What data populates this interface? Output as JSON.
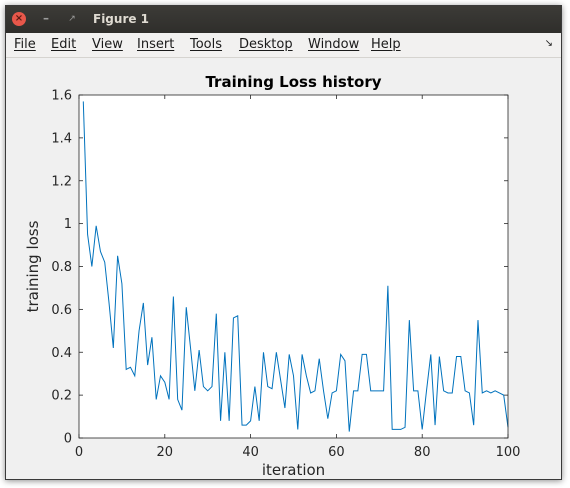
{
  "window": {
    "title": "Figure 1",
    "close_glyph": "×",
    "minimize_glyph": "–",
    "maximize_glyph": "↗"
  },
  "menu": {
    "items": [
      "File",
      "Edit",
      "View",
      "Insert",
      "Tools",
      "Desktop",
      "Window",
      "Help"
    ],
    "dock_glyph": "↘"
  },
  "colors": {
    "line": "#0072bd",
    "axes_bg": "#ffffff",
    "figure_bg": "#f0f0f0",
    "axis": "#262626"
  },
  "chart_data": {
    "type": "line",
    "title": "Training Loss history",
    "xlabel": "iteration",
    "ylabel": "training loss",
    "xlim": [
      0,
      100
    ],
    "ylim": [
      0,
      1.6
    ],
    "xticks": [
      0,
      20,
      40,
      60,
      80,
      100
    ],
    "yticks": [
      0,
      0.2,
      0.4,
      0.6,
      0.8,
      1,
      1.2,
      1.4,
      1.6
    ],
    "grid": false,
    "series": [
      {
        "x": [
          1,
          2,
          3,
          4,
          5,
          6,
          7,
          8,
          9,
          10,
          11,
          12,
          13,
          14,
          15,
          16,
          17,
          18,
          19,
          20,
          21,
          22,
          23,
          24,
          25,
          26,
          27,
          28,
          29,
          30,
          31,
          32,
          33,
          34,
          35,
          36,
          37,
          38,
          39,
          40,
          41,
          42,
          43,
          44,
          45,
          46,
          47,
          48,
          49,
          50,
          51,
          52,
          53,
          54,
          55,
          56,
          57,
          58,
          59,
          60,
          61,
          62,
          63,
          64,
          65,
          66,
          67,
          68,
          69,
          70,
          71,
          72,
          73,
          74,
          75,
          76,
          77,
          78,
          79,
          80,
          81,
          82,
          83,
          84,
          85,
          86,
          87,
          88,
          89,
          90,
          91,
          92,
          93,
          94,
          95,
          96,
          97,
          98,
          99,
          100
        ],
        "y": [
          1.57,
          0.95,
          0.8,
          0.99,
          0.87,
          0.82,
          0.63,
          0.42,
          0.85,
          0.72,
          0.32,
          0.33,
          0.29,
          0.5,
          0.63,
          0.34,
          0.47,
          0.18,
          0.29,
          0.26,
          0.18,
          0.66,
          0.18,
          0.13,
          0.61,
          0.42,
          0.22,
          0.41,
          0.24,
          0.22,
          0.24,
          0.58,
          0.08,
          0.4,
          0.08,
          0.56,
          0.57,
          0.06,
          0.06,
          0.08,
          0.24,
          0.08,
          0.4,
          0.24,
          0.23,
          0.4,
          0.27,
          0.14,
          0.39,
          0.29,
          0.04,
          0.39,
          0.29,
          0.21,
          0.22,
          0.37,
          0.22,
          0.09,
          0.21,
          0.22,
          0.39,
          0.36,
          0.03,
          0.22,
          0.22,
          0.39,
          0.39,
          0.22,
          0.22,
          0.22,
          0.22,
          0.71,
          0.04,
          0.04,
          0.04,
          0.05,
          0.55,
          0.22,
          0.22,
          0.04,
          0.22,
          0.39,
          0.06,
          0.38,
          0.22,
          0.21,
          0.21,
          0.38,
          0.38,
          0.22,
          0.21,
          0.06,
          0.55,
          0.21,
          0.22,
          0.21,
          0.22,
          0.21,
          0.2,
          0.05
        ]
      }
    ]
  }
}
